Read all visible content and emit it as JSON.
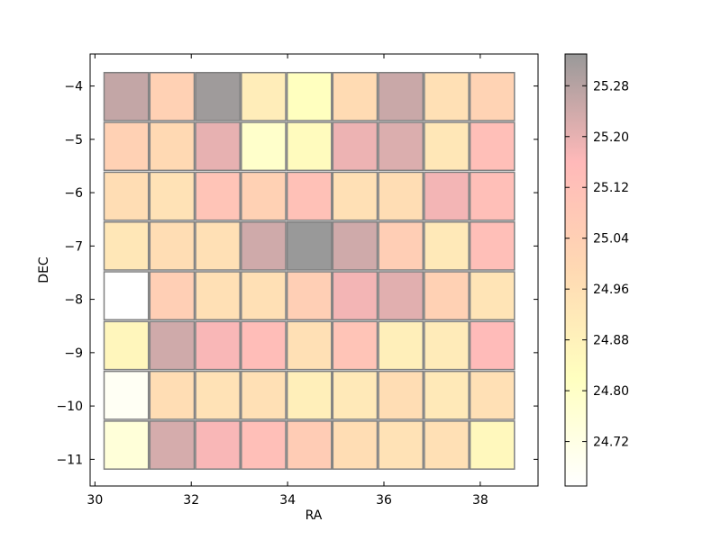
{
  "chart_data": {
    "type": "heatmap",
    "title": "",
    "xlabel": "RA",
    "ylabel": "DEC",
    "xlim": [
      29.9,
      39.2
    ],
    "ylim": [
      -11.5,
      -3.4
    ],
    "xticks": [
      30,
      32,
      34,
      36,
      38
    ],
    "yticks": [
      -4,
      -5,
      -6,
      -7,
      -8,
      -9,
      -10,
      -11
    ],
    "x_centers": [
      30.65,
      31.6,
      32.55,
      33.5,
      34.45,
      35.4,
      36.35,
      37.3,
      38.25
    ],
    "y_centers": [
      -4.2,
      -5.133,
      -6.067,
      -7.0,
      -7.933,
      -8.867,
      -9.8,
      -10.733
    ],
    "cell_width": 0.92,
    "cell_height": 0.9,
    "colorbar": {
      "min": 24.65,
      "max": 25.33,
      "ticks": [
        24.72,
        24.8,
        24.88,
        24.96,
        25.04,
        25.12,
        25.2,
        25.28
      ],
      "cmap_stops": [
        "#ffffff",
        "#ffff60",
        "#ffa040",
        "#ff5050",
        "#000000"
      ]
    },
    "grid": false,
    "values": [
      [
        25.26,
        25.03,
        25.32,
        24.9,
        24.82,
        24.98,
        25.25,
        24.96,
        25.02
      ],
      [
        25.03,
        24.99,
        25.2,
        24.79,
        24.84,
        25.19,
        25.22,
        24.93,
        25.13
      ],
      [
        24.97,
        24.95,
        25.1,
        25.03,
        25.12,
        24.96,
        24.97,
        25.18,
        25.13
      ],
      [
        24.93,
        24.97,
        24.96,
        25.24,
        25.33,
        25.24,
        25.05,
        24.92,
        25.13
      ],
      [
        24.65,
        25.04,
        24.96,
        24.96,
        25.04,
        25.18,
        25.21,
        25.03,
        24.94
      ],
      [
        24.86,
        25.24,
        25.17,
        25.14,
        24.96,
        25.1,
        24.89,
        24.91,
        25.15
      ],
      [
        24.68,
        24.97,
        24.95,
        24.96,
        24.89,
        24.92,
        24.97,
        24.92,
        24.96
      ],
      [
        24.75,
        25.23,
        25.17,
        25.13,
        25.06,
        24.97,
        24.95,
        24.96,
        24.85
      ]
    ]
  }
}
